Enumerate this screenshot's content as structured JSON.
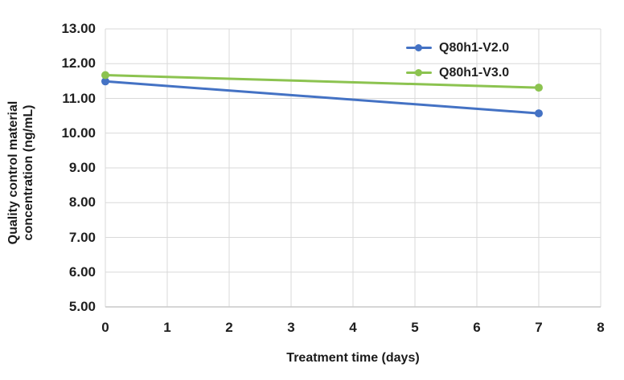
{
  "chart_data": {
    "type": "line",
    "title": "",
    "xlabel": "Treatment time (days)",
    "ylabel": "Quality control material concentration (ng/mL)",
    "ylabel_lines": [
      "Quality control material",
      "concentration (ng/mL)"
    ],
    "x": [
      0,
      7
    ],
    "series": [
      {
        "name": "Q80h1-V2.0",
        "color": "#4472C4",
        "values": [
          11.49,
          10.57
        ]
      },
      {
        "name": "Q80h1-V3.0",
        "color": "#8CC350",
        "values": [
          11.67,
          11.31
        ]
      }
    ],
    "xlim": [
      0,
      8
    ],
    "ylim": [
      5,
      13
    ],
    "x_ticks": [
      0,
      1,
      2,
      3,
      4,
      5,
      6,
      7,
      8
    ],
    "y_ticks": [
      13,
      12,
      11,
      10,
      9,
      8,
      7,
      6,
      5
    ],
    "y_tick_labels": [
      "13.00",
      "12.00",
      "11.00",
      "10.00",
      "9.00",
      "8.00",
      "7.00",
      "6.00",
      "5.00"
    ],
    "grid": true,
    "legend_position": "top-right-inside",
    "colors": {
      "grid": "#D9D9D9",
      "axis": "#C9C9C9",
      "tick_text": "#1F1F1F",
      "title_text": "#1A1A1A",
      "background": "#FFFFFF"
    }
  }
}
